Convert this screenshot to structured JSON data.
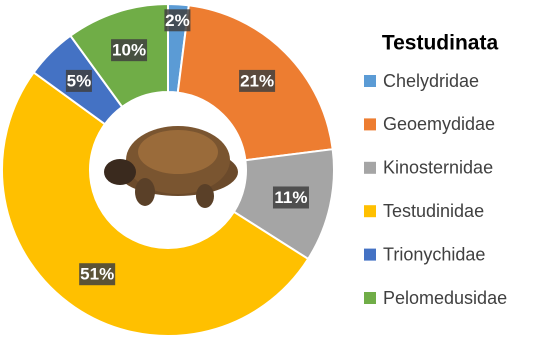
{
  "chart_data": {
    "type": "donut",
    "legend_title": "Testudinata",
    "categories": [
      "Chelydridae",
      "Geoemydidae",
      "Kinosternidae",
      "Testudinidae",
      "Trionychidae",
      "Pelomedusidae"
    ],
    "values": [
      2,
      21,
      11,
      51,
      5,
      10
    ],
    "value_labels": [
      "2%",
      "21%",
      "11%",
      "51%",
      "5%",
      "10%"
    ],
    "colors": [
      "#5b9bd5",
      "#ed7d31",
      "#a5a5a5",
      "#ffc000",
      "#4472c4",
      "#70ad47"
    ],
    "legend": "right"
  }
}
